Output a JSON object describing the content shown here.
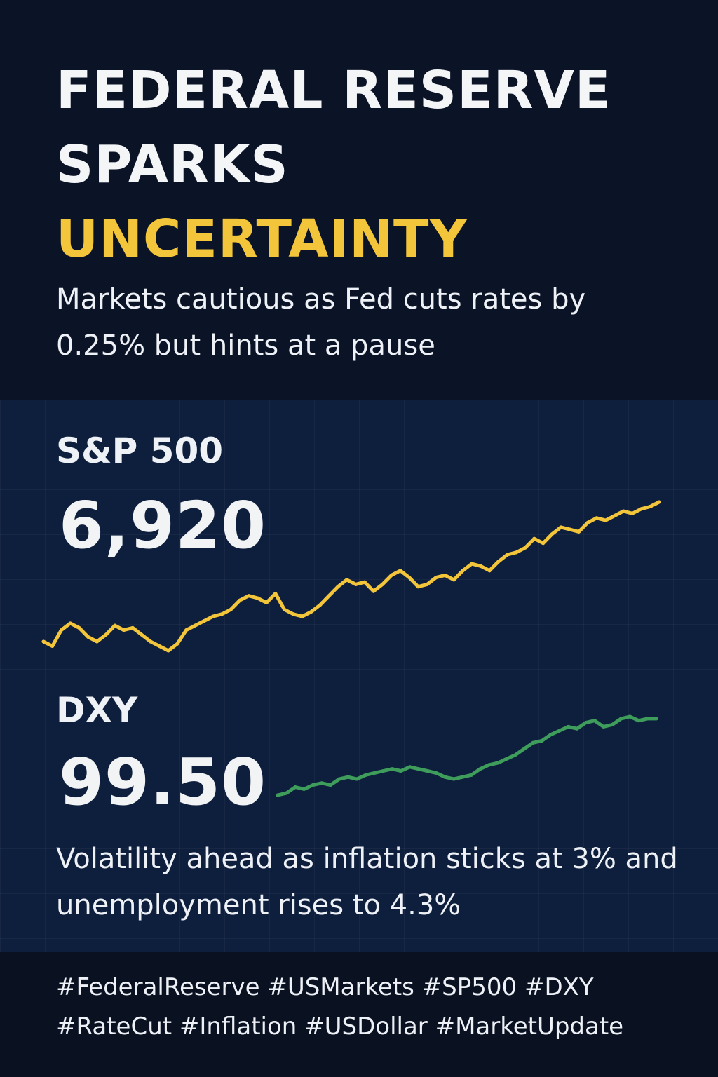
{
  "headline": {
    "line1": "FEDERAL RESERVE",
    "line2": "SPARKS",
    "line3": "UNCERTAINTY",
    "accent_color": "#f3c53a"
  },
  "subhead": "Markets cautious as Fed cuts rates by 0.25% but hints at a pause",
  "chart_data": [
    {
      "type": "line",
      "title": "S&P 500",
      "value_label": "6,920",
      "color": "#f3c53a",
      "grid": true,
      "series": [
        {
          "values": [
            6310,
            6290,
            6360,
            6390,
            6370,
            6330,
            6310,
            6340,
            6380,
            6360,
            6370,
            6340,
            6310,
            6290,
            6270,
            6300,
            6360,
            6380,
            6400,
            6420,
            6430,
            6450,
            6490,
            6510,
            6500,
            6480,
            6520,
            6450,
            6430,
            6420,
            6440,
            6470,
            6510,
            6550,
            6580,
            6560,
            6570,
            6530,
            6560,
            6600,
            6620,
            6590,
            6550,
            6560,
            6590,
            6600,
            6580,
            6620,
            6650,
            6640,
            6620,
            6660,
            6690,
            6700,
            6720,
            6760,
            6740,
            6780,
            6810,
            6800,
            6790,
            6830,
            6850,
            6840,
            6860,
            6880,
            6870,
            6890,
            6900,
            6920
          ]
        }
      ]
    },
    {
      "type": "line",
      "title": "DXY",
      "value_label": "99.50",
      "color": "#3f9d5c",
      "grid": true,
      "series": [
        {
          "values": [
            97.6,
            97.65,
            97.8,
            97.75,
            97.85,
            97.9,
            97.85,
            98.0,
            98.05,
            98.0,
            98.1,
            98.15,
            98.2,
            98.25,
            98.2,
            98.3,
            98.25,
            98.2,
            98.15,
            98.05,
            98.0,
            98.05,
            98.1,
            98.25,
            98.35,
            98.4,
            98.5,
            98.6,
            98.75,
            98.9,
            98.95,
            99.1,
            99.2,
            99.3,
            99.25,
            99.4,
            99.45,
            99.3,
            99.35,
            99.5,
            99.55,
            99.45,
            99.5,
            99.5
          ]
        }
      ]
    }
  ],
  "note": "Volatility ahead as inflation sticks at 3% and unemployment rises to 4.3%",
  "hashtags": {
    "line1": "#FederalReserve #USMarkets #SP500 #DXY",
    "line2": "#RateCut #Inflation #USDollar #MarketUpdate"
  }
}
